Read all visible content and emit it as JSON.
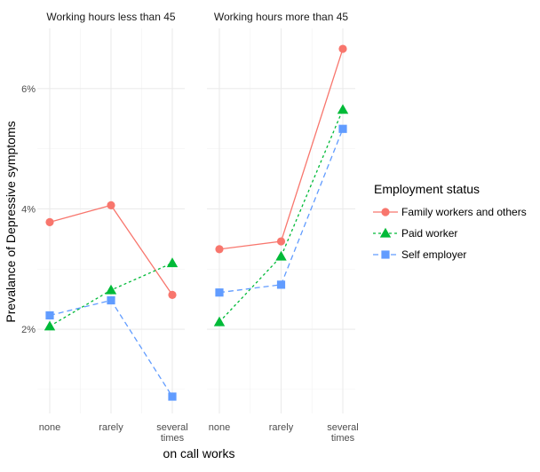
{
  "chart_data": {
    "type": "line",
    "xlabel": "on call works",
    "ylabel": "Prevalance of Depressive symptoms",
    "categories": [
      "none",
      "rarely",
      "several times"
    ],
    "category_lines": [
      [
        "none"
      ],
      [
        "rarely"
      ],
      [
        "several",
        "times"
      ]
    ],
    "ylim": [
      0.6,
      7.0
    ],
    "y_ticks": [
      {
        "value": 2,
        "label": "2%"
      },
      {
        "value": 4,
        "label": "4%"
      },
      {
        "value": 6,
        "label": "6%"
      }
    ],
    "y_minor_ticks": [
      1,
      3,
      5
    ],
    "grid": true,
    "legend": {
      "title": "Employment status",
      "position": "right"
    },
    "panels": [
      {
        "title": "Working hours less than 45",
        "series": [
          {
            "name": "Family workers and others",
            "values": [
              3.78,
              4.06,
              2.57
            ]
          },
          {
            "name": "Paid worker",
            "values": [
              2.05,
              2.65,
              3.1
            ]
          },
          {
            "name": "Self employer",
            "values": [
              2.23,
              2.48,
              0.88
            ]
          }
        ]
      },
      {
        "title": "Working hours more than 45",
        "series": [
          {
            "name": "Family workers and others",
            "values": [
              3.33,
              3.46,
              6.66
            ]
          },
          {
            "name": "Paid worker",
            "values": [
              2.12,
              3.21,
              5.65
            ]
          },
          {
            "name": "Self employer",
            "values": [
              2.61,
              2.74,
              5.33
            ]
          }
        ]
      }
    ],
    "series_styles": [
      {
        "name": "Family workers and others",
        "color": "#F8766D",
        "marker": "circle",
        "dash": ""
      },
      {
        "name": "Paid worker",
        "color": "#00BA38",
        "marker": "triangle",
        "dash": "3,3"
      },
      {
        "name": "Self employer",
        "color": "#619CFF",
        "marker": "square",
        "dash": "6,4"
      }
    ]
  }
}
